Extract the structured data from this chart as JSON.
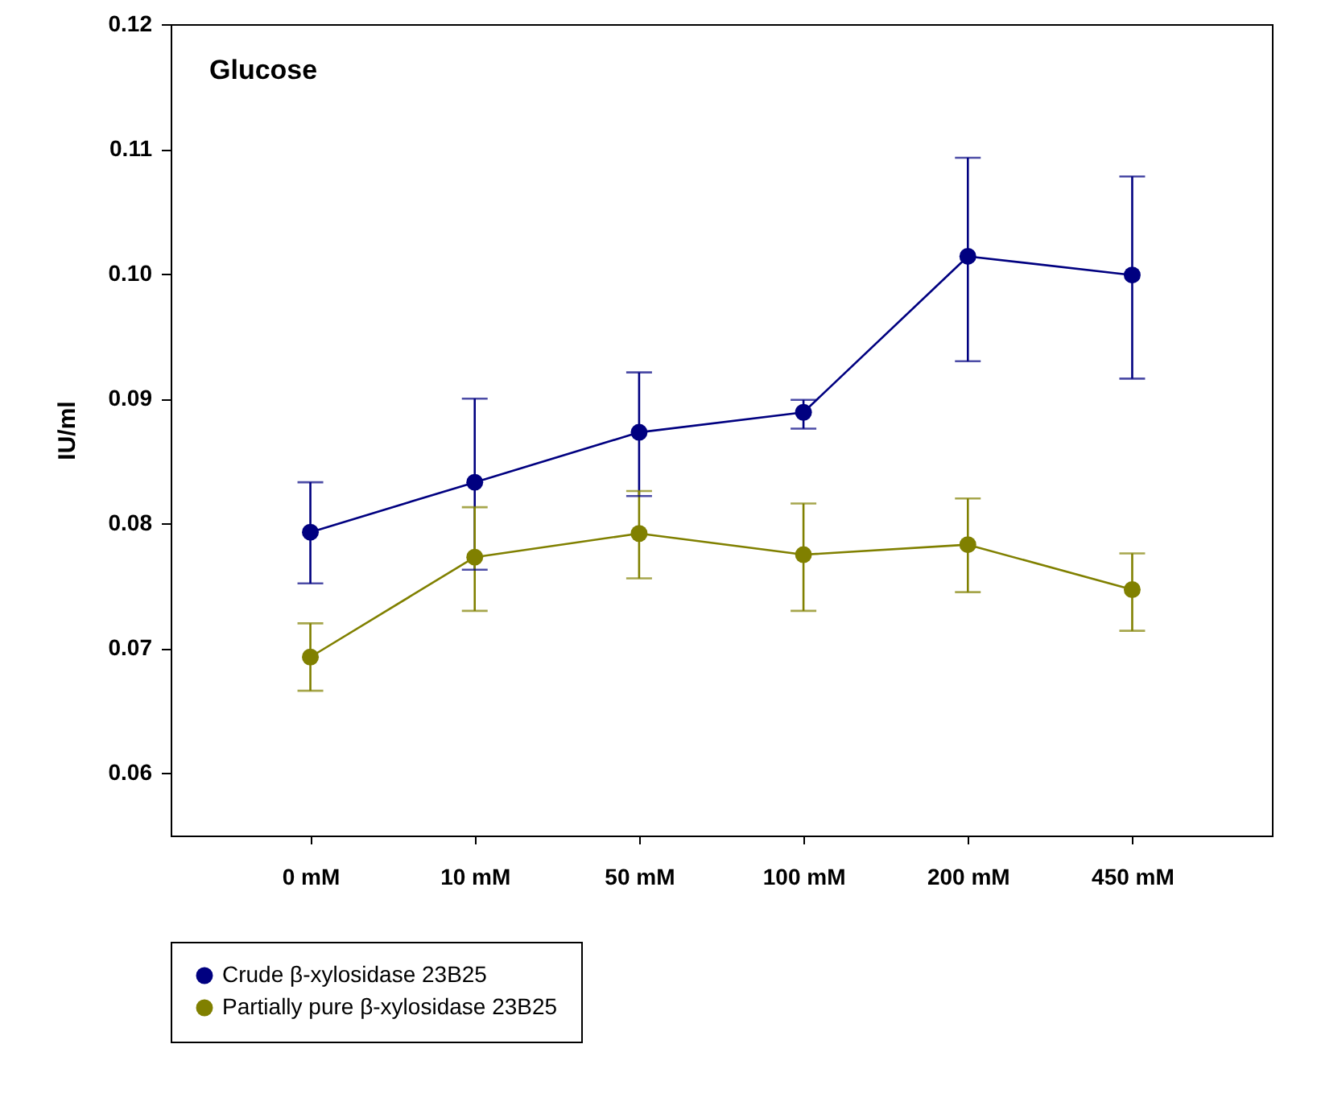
{
  "chart_data": {
    "type": "line",
    "title": "Glucose",
    "ylabel": "IU/ml",
    "categories": [
      "0 mM",
      "10 mM",
      "50 mM",
      "100 mM",
      "200 mM",
      "450 mM"
    ],
    "series": [
      {
        "name": "Crude β-xylosidase 23B25",
        "color": "#000080",
        "values": [
          0.0793,
          0.0833,
          0.0873,
          0.0889,
          0.1014,
          0.0999
        ],
        "errors": [
          [
            0.0752,
            0.0833
          ],
          [
            0.0763,
            0.09
          ],
          [
            0.0822,
            0.0921
          ],
          [
            0.0876,
            0.0899
          ],
          [
            0.093,
            0.1093
          ],
          [
            0.0916,
            0.1078
          ]
        ]
      },
      {
        "name": "Partially pure β-xylosidase 23B25",
        "color": "#808000",
        "values": [
          0.0693,
          0.0773,
          0.0792,
          0.0775,
          0.0783,
          0.0747
        ],
        "errors": [
          [
            0.0666,
            0.072
          ],
          [
            0.073,
            0.0813
          ],
          [
            0.0756,
            0.0826
          ],
          [
            0.073,
            0.0816
          ],
          [
            0.0745,
            0.082
          ],
          [
            0.0714,
            0.0776
          ]
        ]
      }
    ],
    "ylim": [
      0.055,
      0.12
    ],
    "yticks": [
      0.06,
      0.07,
      0.08,
      0.09,
      {
        "value": 0.1,
        "label": "0.10"
      },
      0.11,
      0.12
    ],
    "grid": false,
    "legend": "bottom left",
    "marker": "circle",
    "line_style": "solid"
  }
}
